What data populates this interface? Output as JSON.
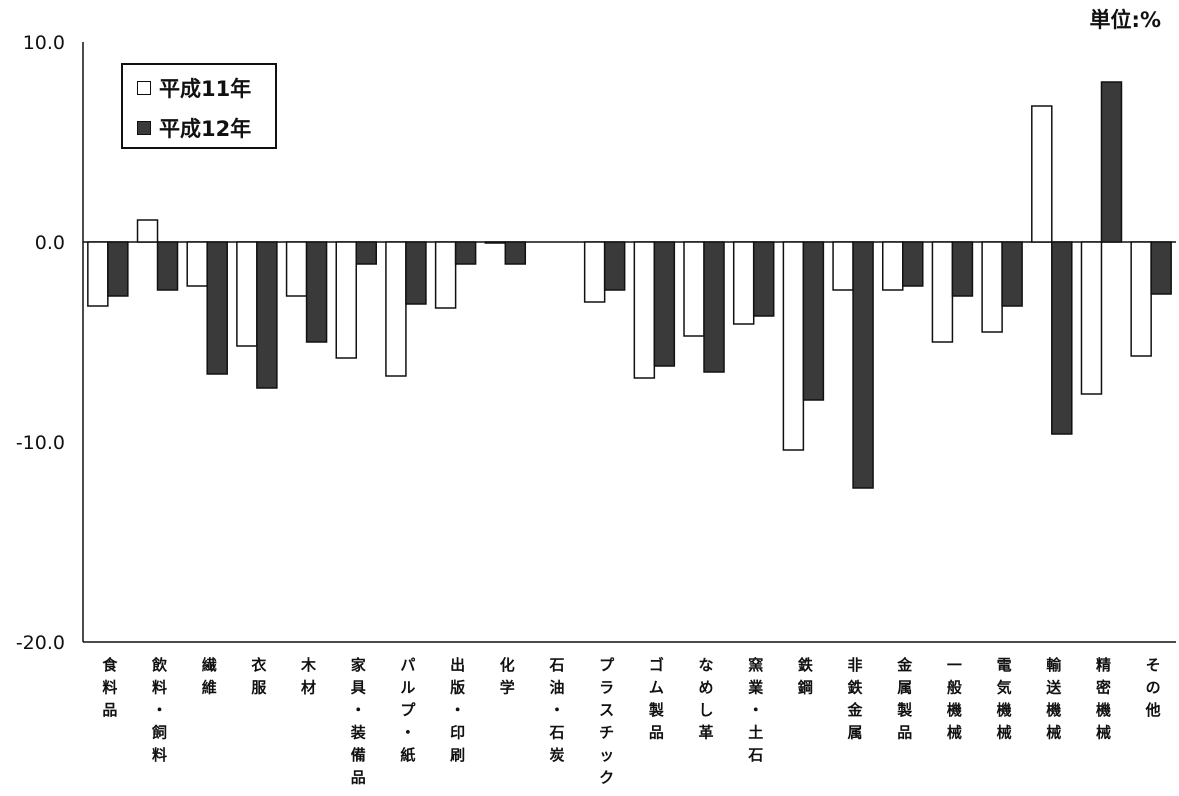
{
  "unit_label": "単位:%",
  "chart_data": {
    "type": "bar",
    "title": "",
    "xlabel": "",
    "ylabel": "",
    "ylim": [
      -20.0,
      10.0
    ],
    "yticks": [
      "10.0",
      "0.0",
      "-10.0",
      "-20.0"
    ],
    "grid": false,
    "legend_position": "top-left",
    "categories": [
      "食料品",
      "飲料・飼料",
      "繊維",
      "衣服",
      "木材",
      "家具・装備品",
      "パルプ・紙",
      "出版・印刷",
      "化学",
      "石油・石炭",
      "プラスチック",
      "ゴム製品",
      "なめし革",
      "窯業・土石",
      "鉄鋼",
      "非鉄金属",
      "金属製品",
      "一般機械",
      "電気機械",
      "輸送機械",
      "精密機械",
      "その他"
    ],
    "series": [
      {
        "name": "平成11年",
        "color": "#ffffff",
        "values": [
          -3.2,
          1.1,
          -2.2,
          -5.2,
          -2.7,
          -5.8,
          -6.7,
          -3.3,
          0.0,
          null,
          -3.0,
          -6.8,
          -4.7,
          -4.1,
          -10.4,
          -2.4,
          -2.4,
          -5.0,
          -4.5,
          6.8,
          -7.6,
          -5.7
        ]
      },
      {
        "name": "平成12年",
        "color": "#3a3a3a",
        "values": [
          -2.7,
          -2.4,
          -6.6,
          -7.3,
          -5.0,
          -1.1,
          -3.1,
          -1.1,
          -1.1,
          null,
          -2.4,
          -6.2,
          -6.5,
          -3.7,
          -7.9,
          -12.3,
          -2.2,
          -2.7,
          -3.2,
          -9.6,
          8.0,
          -2.6
        ]
      }
    ]
  }
}
